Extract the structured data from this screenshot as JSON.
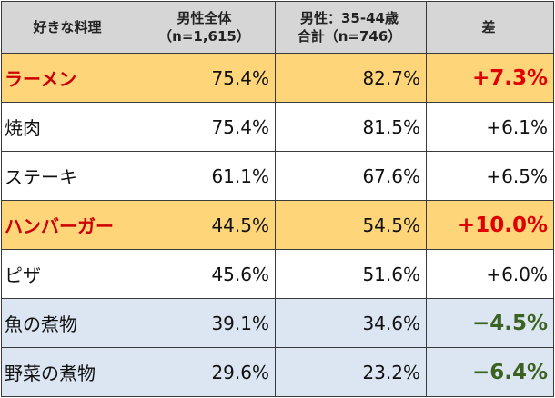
{
  "header": {
    "col1": "好きな料理",
    "col2_line1": "男性全体",
    "col2_line2": "（n=1,615）",
    "col3_line1": "男性：35-44歳",
    "col3_line2": "合計（n=746）",
    "col4": "差"
  },
  "rows": [
    {
      "name": "ラーメン",
      "all": "75.4%",
      "age": "82.7%",
      "diff": "+7.3%"
    },
    {
      "name": "焼肉",
      "all": "75.4%",
      "age": "81.5%",
      "diff": "+6.1%"
    },
    {
      "name": "ステーキ",
      "all": "61.1%",
      "age": "67.6%",
      "diff": "+6.5%"
    },
    {
      "name": "ハンバーガー",
      "all": "44.5%",
      "age": "54.5%",
      "diff": "+10.0%"
    },
    {
      "name": "ピザ",
      "all": "45.6%",
      "age": "51.6%",
      "diff": "+6.0%"
    },
    {
      "name": "魚の煮物",
      "all": "39.1%",
      "age": "34.6%",
      "diff": "−4.5%"
    },
    {
      "name": "野菜の煮物",
      "all": "29.6%",
      "age": "23.2%",
      "diff": "−6.4%"
    }
  ],
  "colors": {
    "header_bg": "#d6d6d6",
    "highlight_bg": "#ffd579",
    "highlight_text": "#cc0000",
    "positive_highlight": "#e00000",
    "negative": "#3c6222",
    "blue_bg": "#dce6f2",
    "border": "#3a3a3a"
  }
}
